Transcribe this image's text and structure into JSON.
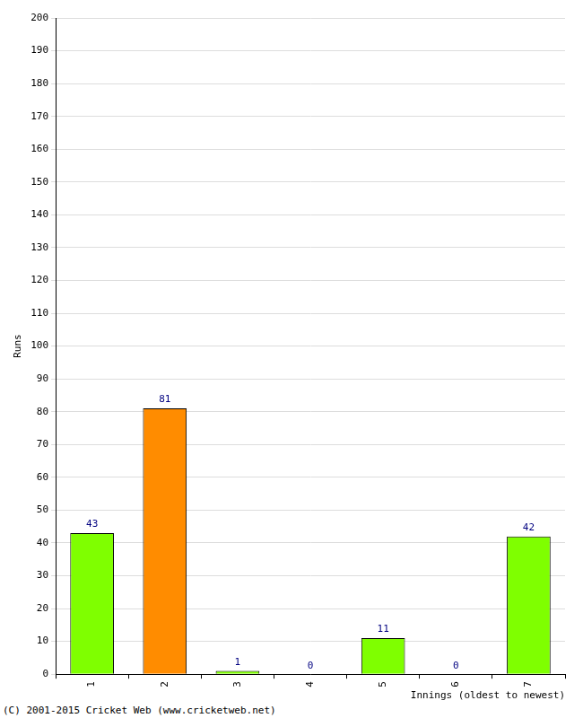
{
  "chart_data": {
    "type": "bar",
    "categories": [
      "1",
      "2",
      "3",
      "4",
      "5",
      "6",
      "7"
    ],
    "values": [
      43,
      81,
      1,
      0,
      11,
      0,
      42
    ],
    "colors": [
      "#7fff00",
      "#ff8c00",
      "#7fff00",
      "#7fff00",
      "#7fff00",
      "#7fff00",
      "#7fff00"
    ],
    "x_label": "Innings (oldest to newest)",
    "y_label": "Runs",
    "annotation": "(C) 2001-2015 Cricket Web (www.cricketweb.net)",
    "ylim": [
      0,
      200
    ],
    "yticks": [
      0,
      10,
      20,
      30,
      40,
      50,
      60,
      70,
      80,
      90,
      100,
      110,
      120,
      130,
      140,
      150,
      160,
      170,
      180,
      190,
      200
    ],
    "grid": true,
    "data_labels": true
  }
}
